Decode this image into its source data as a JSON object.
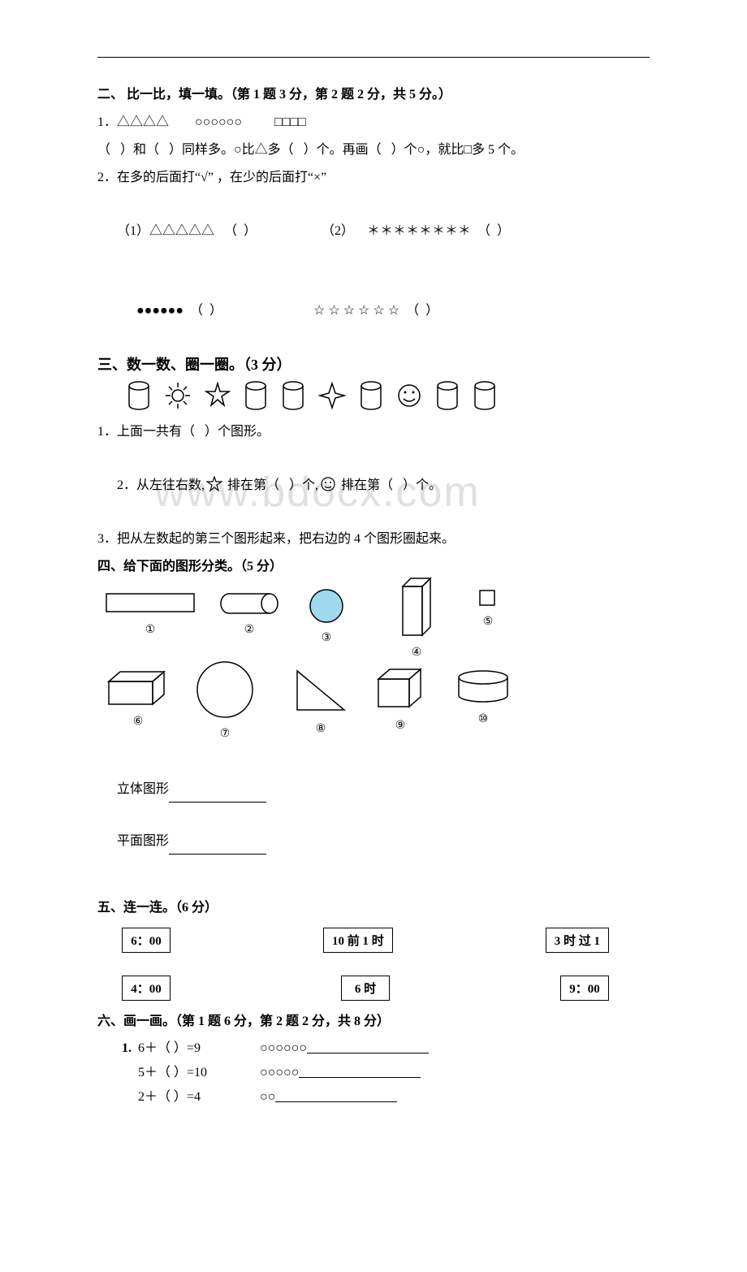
{
  "section2": {
    "heading": "二、 比一比，填一填。（第 1 题 3 分，第 2 题 2 分，共 5 分。）",
    "q1_shapes": "1．△△△△        ○○○○○○          □□□□",
    "q1_text": "（   ）和（   ）同样多。○比△多（   ）个。再画（   ）个○，就比□多 5 个。",
    "q2_text": "2．在多的后面打“√” ，在少的后面打“×”",
    "q2_row1_left": "（1）△△△△△   （  ）",
    "q2_row1_right": "（2）    ＊＊＊＊＊＊＊＊  （  ）",
    "q2_row2_left": "      ●●●●●●  （  ）",
    "q2_row2_right": "        ☆ ☆ ☆ ☆ ☆ ☆  （  ）"
  },
  "section3": {
    "heading": "三、数一数、圈一圈。（3 分）",
    "q1": "1．上面一共有（   ）个图形。",
    "q2_a": "2．从左往右数,",
    "q2_b": " 排在第（   ）个,",
    "q2_c": " 排在第（   ）个。",
    "q3": "3．把从左数起的第三个图形起来，把右边的 4 个图形圈起来。"
  },
  "section4": {
    "heading": "四、给下面的图形分类。（5 分）",
    "nums": [
      "①",
      "②",
      "③",
      "④",
      "⑤",
      "⑥",
      "⑦",
      "⑧",
      "⑨",
      "⑩"
    ],
    "label1": "立体图形",
    "label2": "平面图形",
    "colors": {
      "shape3_fill": "#9fd9ee",
      "stroke": "#000000"
    }
  },
  "section5": {
    "heading": "五、连一连。（6 分）",
    "row1": [
      "6：00",
      "10 前 1 时",
      "3  时  过  1"
    ],
    "row2": [
      "4：00",
      "6 时",
      "9：00"
    ]
  },
  "section6": {
    "heading": "六、画一画。（第 1 题 6 分，第 2 题 2 分，共 8 分）",
    "lines": [
      {
        "prefix": "1.",
        "eq": "6＋（    ）=9",
        "circles": "○○○○○○"
      },
      {
        "prefix": "  ",
        "eq": "5＋（    ）=10",
        "circles": "○○○○○"
      },
      {
        "prefix": "  ",
        "eq": "2＋（    ）=4",
        "circles": "○○"
      }
    ]
  },
  "watermark": "www.bdocx.com"
}
